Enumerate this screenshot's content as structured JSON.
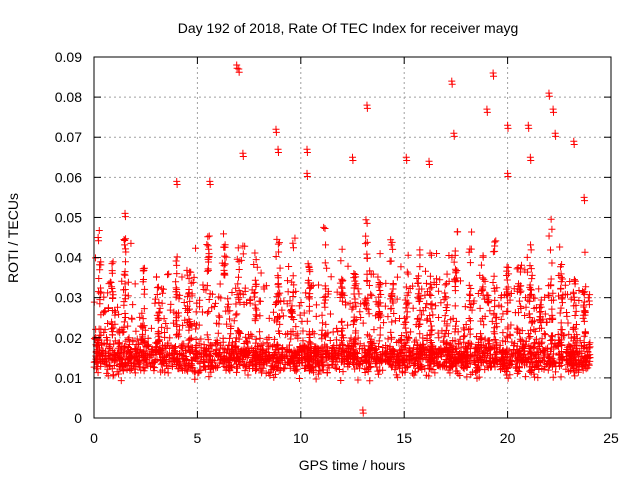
{
  "chart_data": {
    "type": "scatter",
    "title": "Day 192 of 2018, Rate Of TEC Index for receiver mayg",
    "xlabel": "GPS time / hours",
    "ylabel": "ROTI / TECUs",
    "xlim": [
      0,
      25
    ],
    "ylim": [
      0,
      0.09
    ],
    "x_ticks": [
      0,
      5,
      10,
      15,
      20,
      25
    ],
    "x_tick_labels": [
      "0",
      "5",
      "10",
      "15",
      "20",
      "25"
    ],
    "y_ticks": [
      0,
      0.01,
      0.02,
      0.03,
      0.04,
      0.05,
      0.06,
      0.07,
      0.08,
      0.09
    ],
    "y_tick_labels": [
      "0",
      "0.01",
      "0.02",
      "0.03",
      "0.04",
      "0.05",
      "0.06",
      "0.07",
      "0.08",
      "0.09"
    ],
    "grid": true,
    "marker": "+",
    "color": "#ff0000",
    "series": [
      {
        "name": "ROTI",
        "x_range": [
          0,
          24
        ],
        "typical_min": 0.005,
        "typical_max": 0.035,
        "notable_points": [
          {
            "x": 0.2,
            "y": 0.045
          },
          {
            "x": 1.5,
            "y": 0.051
          },
          {
            "x": 4.0,
            "y": 0.059
          },
          {
            "x": 5.6,
            "y": 0.059
          },
          {
            "x": 6.9,
            "y": 0.088
          },
          {
            "x": 7.0,
            "y": 0.087
          },
          {
            "x": 7.2,
            "y": 0.066
          },
          {
            "x": 8.8,
            "y": 0.072
          },
          {
            "x": 8.9,
            "y": 0.067
          },
          {
            "x": 10.3,
            "y": 0.067
          },
          {
            "x": 10.3,
            "y": 0.061
          },
          {
            "x": 12.5,
            "y": 0.065
          },
          {
            "x": 13.2,
            "y": 0.078
          },
          {
            "x": 15.1,
            "y": 0.065
          },
          {
            "x": 16.2,
            "y": 0.064
          },
          {
            "x": 17.3,
            "y": 0.084
          },
          {
            "x": 17.4,
            "y": 0.071
          },
          {
            "x": 19.0,
            "y": 0.077
          },
          {
            "x": 19.3,
            "y": 0.086
          },
          {
            "x": 20.0,
            "y": 0.073
          },
          {
            "x": 20.0,
            "y": 0.061
          },
          {
            "x": 21.0,
            "y": 0.073
          },
          {
            "x": 21.1,
            "y": 0.065
          },
          {
            "x": 22.0,
            "y": 0.081
          },
          {
            "x": 22.2,
            "y": 0.077
          },
          {
            "x": 22.3,
            "y": 0.071
          },
          {
            "x": 23.2,
            "y": 0.069
          },
          {
            "x": 23.7,
            "y": 0.055
          },
          {
            "x": 13.0,
            "y": 0.002
          }
        ]
      }
    ]
  }
}
